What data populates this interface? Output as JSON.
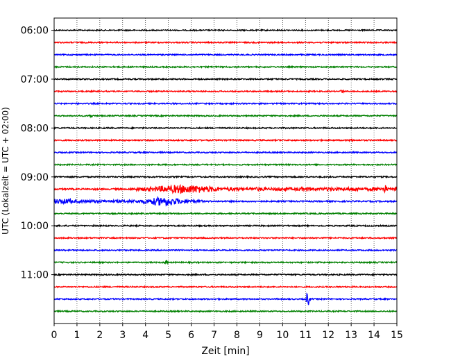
{
  "chart_data": {
    "type": "line",
    "title": "",
    "xlabel": "Zeit  [min]",
    "ylabel": "UTC (Lokalzeit = UTC + 02:00)",
    "xlim": [
      0,
      15
    ],
    "x_ticks": [
      "0",
      "1",
      "2",
      "3",
      "4",
      "5",
      "6",
      "7",
      "8",
      "9",
      "10",
      "11",
      "12",
      "13",
      "14",
      "15"
    ],
    "y_ticks": [
      "06:00",
      "07:00",
      "08:00",
      "09:00",
      "10:00",
      "11:00"
    ],
    "ylim": [
      "05:45",
      "12:00"
    ],
    "grid": {
      "x": "dotted",
      "y": false
    },
    "trace_interval_min": 15,
    "trace_colors": [
      "#000000",
      "#ff0000",
      "#0000ff",
      "#008000"
    ],
    "series": [
      {
        "start": "06:00",
        "color": "#000000",
        "amplitude": "low"
      },
      {
        "start": "06:15",
        "color": "#ff0000",
        "amplitude": "low"
      },
      {
        "start": "06:30",
        "color": "#0000ff",
        "amplitude": "low"
      },
      {
        "start": "06:45",
        "color": "#008000",
        "amplitude": "low"
      },
      {
        "start": "07:00",
        "color": "#000000",
        "amplitude": "low"
      },
      {
        "start": "07:15",
        "color": "#ff0000",
        "amplitude": "low",
        "event_min": 12.6
      },
      {
        "start": "07:30",
        "color": "#0000ff",
        "amplitude": "low"
      },
      {
        "start": "07:45",
        "color": "#008000",
        "amplitude": "low",
        "event_min": 1.6
      },
      {
        "start": "08:00",
        "color": "#000000",
        "amplitude": "low"
      },
      {
        "start": "08:15",
        "color": "#ff0000",
        "amplitude": "low",
        "event_min": 13.0
      },
      {
        "start": "08:30",
        "color": "#0000ff",
        "amplitude": "low"
      },
      {
        "start": "08:45",
        "color": "#008000",
        "amplitude": "low"
      },
      {
        "start": "09:00",
        "color": "#000000",
        "amplitude": "low"
      },
      {
        "start": "09:15",
        "color": "#ff0000",
        "amplitude": "high",
        "activity_start_min": 3.3,
        "activity_peak_min": 5.7,
        "event_min": 14.5
      },
      {
        "start": "09:30",
        "color": "#0000ff",
        "amplitude": "high",
        "activity_end_min": 6.5,
        "activity_peak_min": 4.8
      },
      {
        "start": "09:45",
        "color": "#008000",
        "amplitude": "low"
      },
      {
        "start": "10:00",
        "color": "#000000",
        "amplitude": "low"
      },
      {
        "start": "10:15",
        "color": "#ff0000",
        "amplitude": "low"
      },
      {
        "start": "10:30",
        "color": "#0000ff",
        "amplitude": "low"
      },
      {
        "start": "10:45",
        "color": "#008000",
        "amplitude": "low",
        "event_min": 4.9
      },
      {
        "start": "11:00",
        "color": "#000000",
        "amplitude": "low"
      },
      {
        "start": "11:15",
        "color": "#ff0000",
        "amplitude": "low"
      },
      {
        "start": "11:30",
        "color": "#0000ff",
        "amplitude": "low",
        "event_min": 11.1
      },
      {
        "start": "11:45",
        "color": "#008000",
        "amplitude": "low"
      }
    ]
  }
}
